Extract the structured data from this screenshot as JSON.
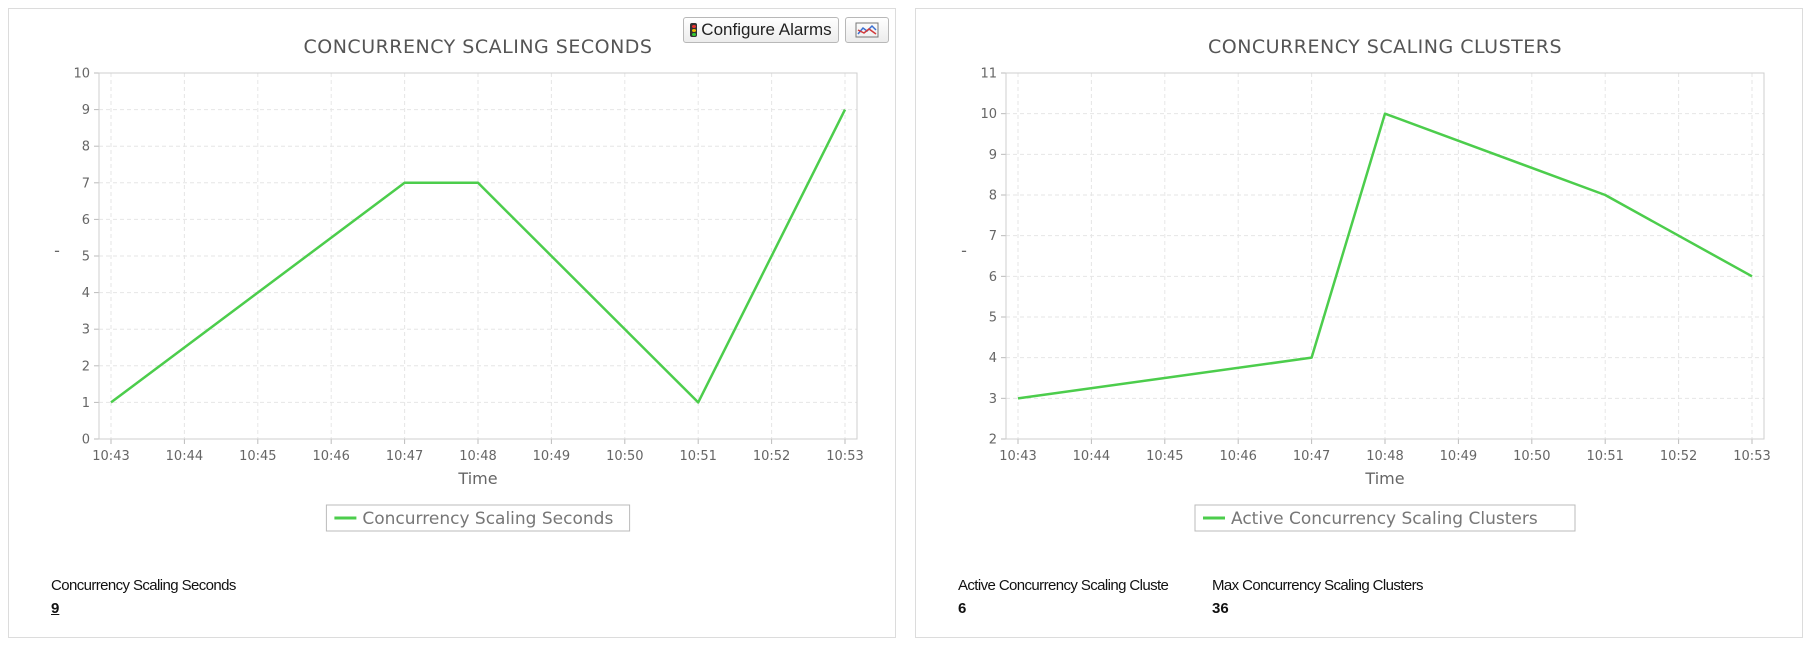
{
  "toolbar": {
    "configure_alarms_label": "Configure Alarms",
    "alarm_icon": "traffic-light-icon",
    "chart_options_icon": "chart-icon"
  },
  "colors": {
    "series": "#4ccd4c",
    "grid": "#e6e6e6",
    "text": "#666666"
  },
  "chart_data": [
    {
      "type": "line",
      "title": "CONCURRENCY SCALING SECONDS",
      "xlabel": "Time",
      "ylabel": "-",
      "x": [
        "10:43",
        "10:44",
        "10:45",
        "10:46",
        "10:47",
        "10:48",
        "10:49",
        "10:50",
        "10:51",
        "10:52",
        "10:53"
      ],
      "yticks": [
        0,
        1,
        2,
        3,
        4,
        5,
        6,
        7,
        8,
        9,
        10
      ],
      "ylim": [
        0,
        10
      ],
      "grid": true,
      "legend_position": "bottom",
      "series": [
        {
          "name": "Concurrency Scaling Seconds",
          "points": [
            [
              "10:43",
              1
            ],
            [
              "10:47",
              7
            ],
            [
              "10:48",
              7
            ],
            [
              "10:51",
              1
            ],
            [
              "10:53",
              9
            ]
          ]
        }
      ]
    },
    {
      "type": "line",
      "title": "CONCURRENCY SCALING CLUSTERS",
      "xlabel": "Time",
      "ylabel": "-",
      "x": [
        "10:43",
        "10:44",
        "10:45",
        "10:46",
        "10:47",
        "10:48",
        "10:49",
        "10:50",
        "10:51",
        "10:52",
        "10:53"
      ],
      "yticks": [
        2,
        3,
        4,
        5,
        6,
        7,
        8,
        9,
        10,
        11
      ],
      "ylim": [
        2,
        11
      ],
      "grid": true,
      "legend_position": "bottom",
      "series": [
        {
          "name": "Active Concurrency Scaling Clusters",
          "points": [
            [
              "10:43",
              3
            ],
            [
              "10:47",
              4
            ],
            [
              "10:48",
              10
            ],
            [
              "10:51",
              8
            ],
            [
              "10:53",
              6
            ]
          ]
        }
      ]
    }
  ],
  "stats": {
    "left": [
      {
        "label": "Concurrency Scaling Seconds",
        "value": "9"
      }
    ],
    "right": [
      {
        "label": "Active Concurrency Scaling Cluste",
        "value": "6"
      },
      {
        "label": "Max Concurrency Scaling Clusters",
        "value": "36"
      }
    ]
  }
}
